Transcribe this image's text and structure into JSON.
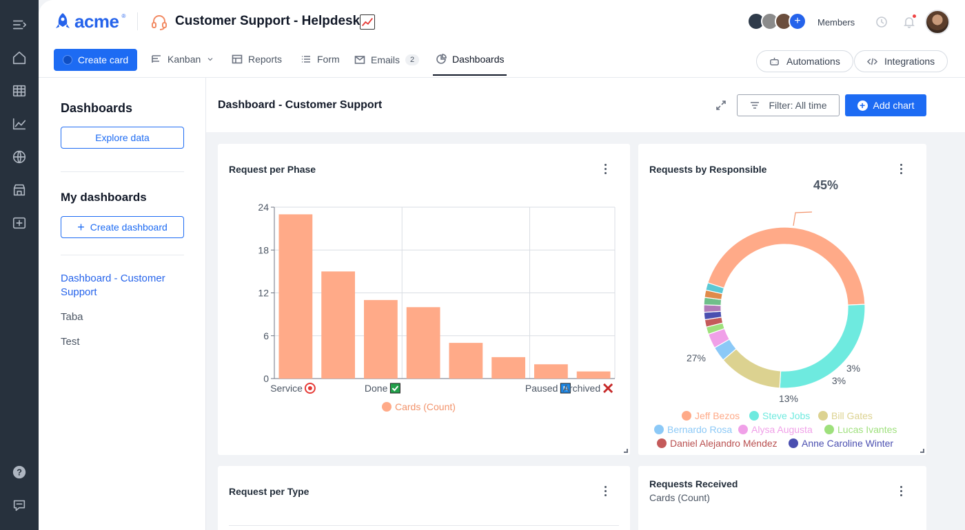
{
  "app": {
    "logo_text": "acme",
    "logo_reg": "®",
    "pipe_title": "Customer Support - Helpdesk",
    "members_label": "Members"
  },
  "nav": {
    "create_card": "Create card",
    "kanban": "Kanban",
    "reports": "Reports",
    "form": "Form",
    "emails": "Emails",
    "emails_count": "2",
    "dashboards": "Dashboards",
    "automations": "Automations",
    "integrations": "Integrations"
  },
  "sidebar": {
    "title": "Dashboards",
    "explore": "Explore data",
    "my_title": "My dashboards",
    "create": "Create dashboard",
    "items": [
      "Dashboard - Customer Support",
      "Taba",
      "Test"
    ]
  },
  "content": {
    "title": "Dashboard - Customer Support",
    "filter": "Filter: All time",
    "add_chart": "Add chart"
  },
  "cards": {
    "phase_title": "Request per Phase",
    "responsible_title": "Requests by Responsible",
    "type_title": "Request per Type",
    "received_title": "Requests Received",
    "received_sub": "Cards (Count)"
  },
  "colors": {
    "accent": "#1d6bf3",
    "bar": "#ffaa88"
  },
  "chart_data": [
    {
      "type": "bar",
      "title": "Request per Phase",
      "categories": [
        "Service",
        "",
        "Done",
        "",
        "",
        "",
        "Paused",
        "Archived"
      ],
      "category_icons": [
        "target",
        "",
        "check",
        "",
        "",
        "",
        "pause",
        "cross"
      ],
      "values": [
        23,
        15,
        11,
        10,
        5,
        3,
        2,
        1
      ],
      "yticks": [
        0,
        6,
        12,
        18,
        24
      ],
      "ylim": [
        0,
        24
      ],
      "legend": "Cards (Count)",
      "grid": true
    },
    {
      "type": "pie",
      "title": "Requests by Responsible",
      "donut": true,
      "slices": [
        {
          "name": "Jeff Bezos",
          "value": 45,
          "label": "45%",
          "color": "#ffaa88"
        },
        {
          "name": "Steve Jobs",
          "value": 27,
          "label": "27%",
          "color": "#6eeadf"
        },
        {
          "name": "Bill Gates",
          "value": 13,
          "label": "13%",
          "color": "#dcd290"
        },
        {
          "name": "Bernardo Rosa",
          "value": 3,
          "label": "3%",
          "color": "#8cc9f7"
        },
        {
          "name": "Alysa Augusta",
          "value": 3,
          "label": "3%",
          "color": "#f0a0e8"
        },
        {
          "name": "Lucas Ivantes",
          "value": 1.5,
          "label": "",
          "color": "#9ee07c"
        },
        {
          "name": "Daniel Alejandro Méndez",
          "value": 1.5,
          "label": "",
          "color": "#c45a5a"
        },
        {
          "name": "Anne Caroline Winter",
          "value": 1.5,
          "label": "",
          "color": "#4a4fb0"
        },
        {
          "name": "",
          "value": 1.5,
          "label": "",
          "color": "#b07ab8"
        },
        {
          "name": "",
          "value": 1.5,
          "label": "",
          "color": "#6fbf8a"
        },
        {
          "name": "",
          "value": 1.5,
          "label": "",
          "color": "#e08a4a"
        },
        {
          "name": "",
          "value": 1.5,
          "label": "",
          "color": "#5bc8d4"
        }
      ],
      "legend": [
        "Jeff Bezos",
        "Steve Jobs",
        "Bill Gates",
        "Bernardo Rosa",
        "Alysa Augusta",
        "Lucas Ivantes",
        "Daniel Alejandro Méndez",
        "Anne Caroline Winter"
      ]
    }
  ]
}
